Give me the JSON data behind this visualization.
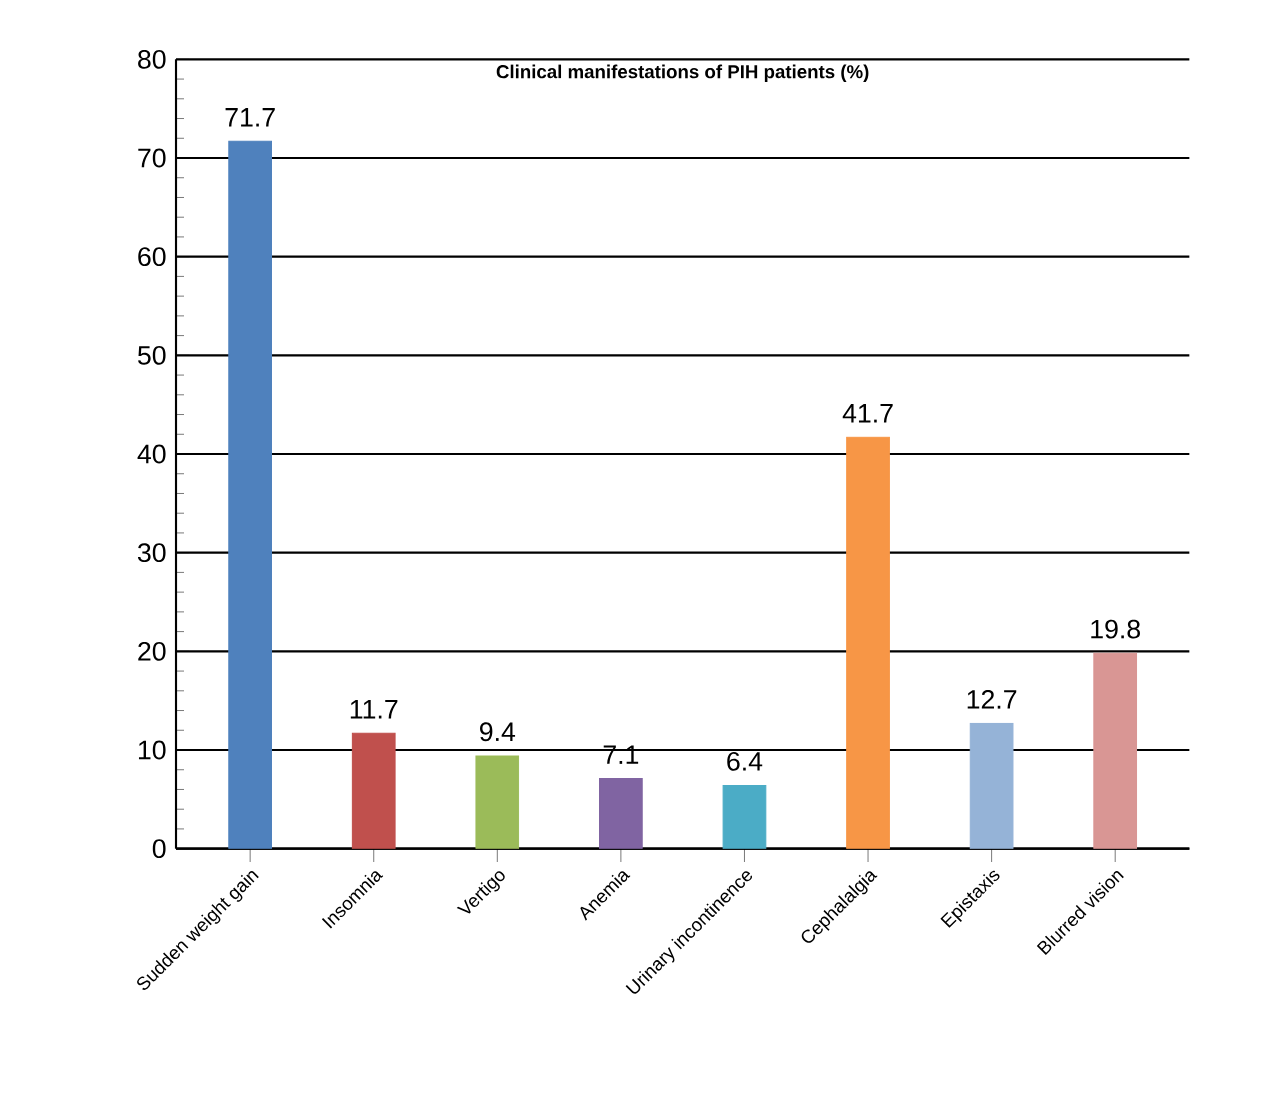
{
  "chart_data": {
    "type": "bar",
    "title": "Clinical manifestations of PIH patients (%)",
    "categories": [
      "Sudden weight gain",
      "Insomnia",
      "Vertigo",
      "Anemia",
      "Urinary incontinence",
      "Cephalalgia",
      "Epistaxis",
      "Blurred vision"
    ],
    "values": [
      71.7,
      11.7,
      9.4,
      7.1,
      6.4,
      41.7,
      12.7,
      19.8
    ],
    "colors": [
      "#4f81bd",
      "#c0504d",
      "#9bbb59",
      "#8064a2",
      "#4bacc6",
      "#f79646",
      "#95b3d7",
      "#d99694"
    ],
    "ylim": [
      0,
      80
    ],
    "yticks": [
      0,
      10,
      20,
      30,
      40,
      50,
      60,
      70,
      80
    ],
    "grid": "y",
    "data_labels": true
  }
}
